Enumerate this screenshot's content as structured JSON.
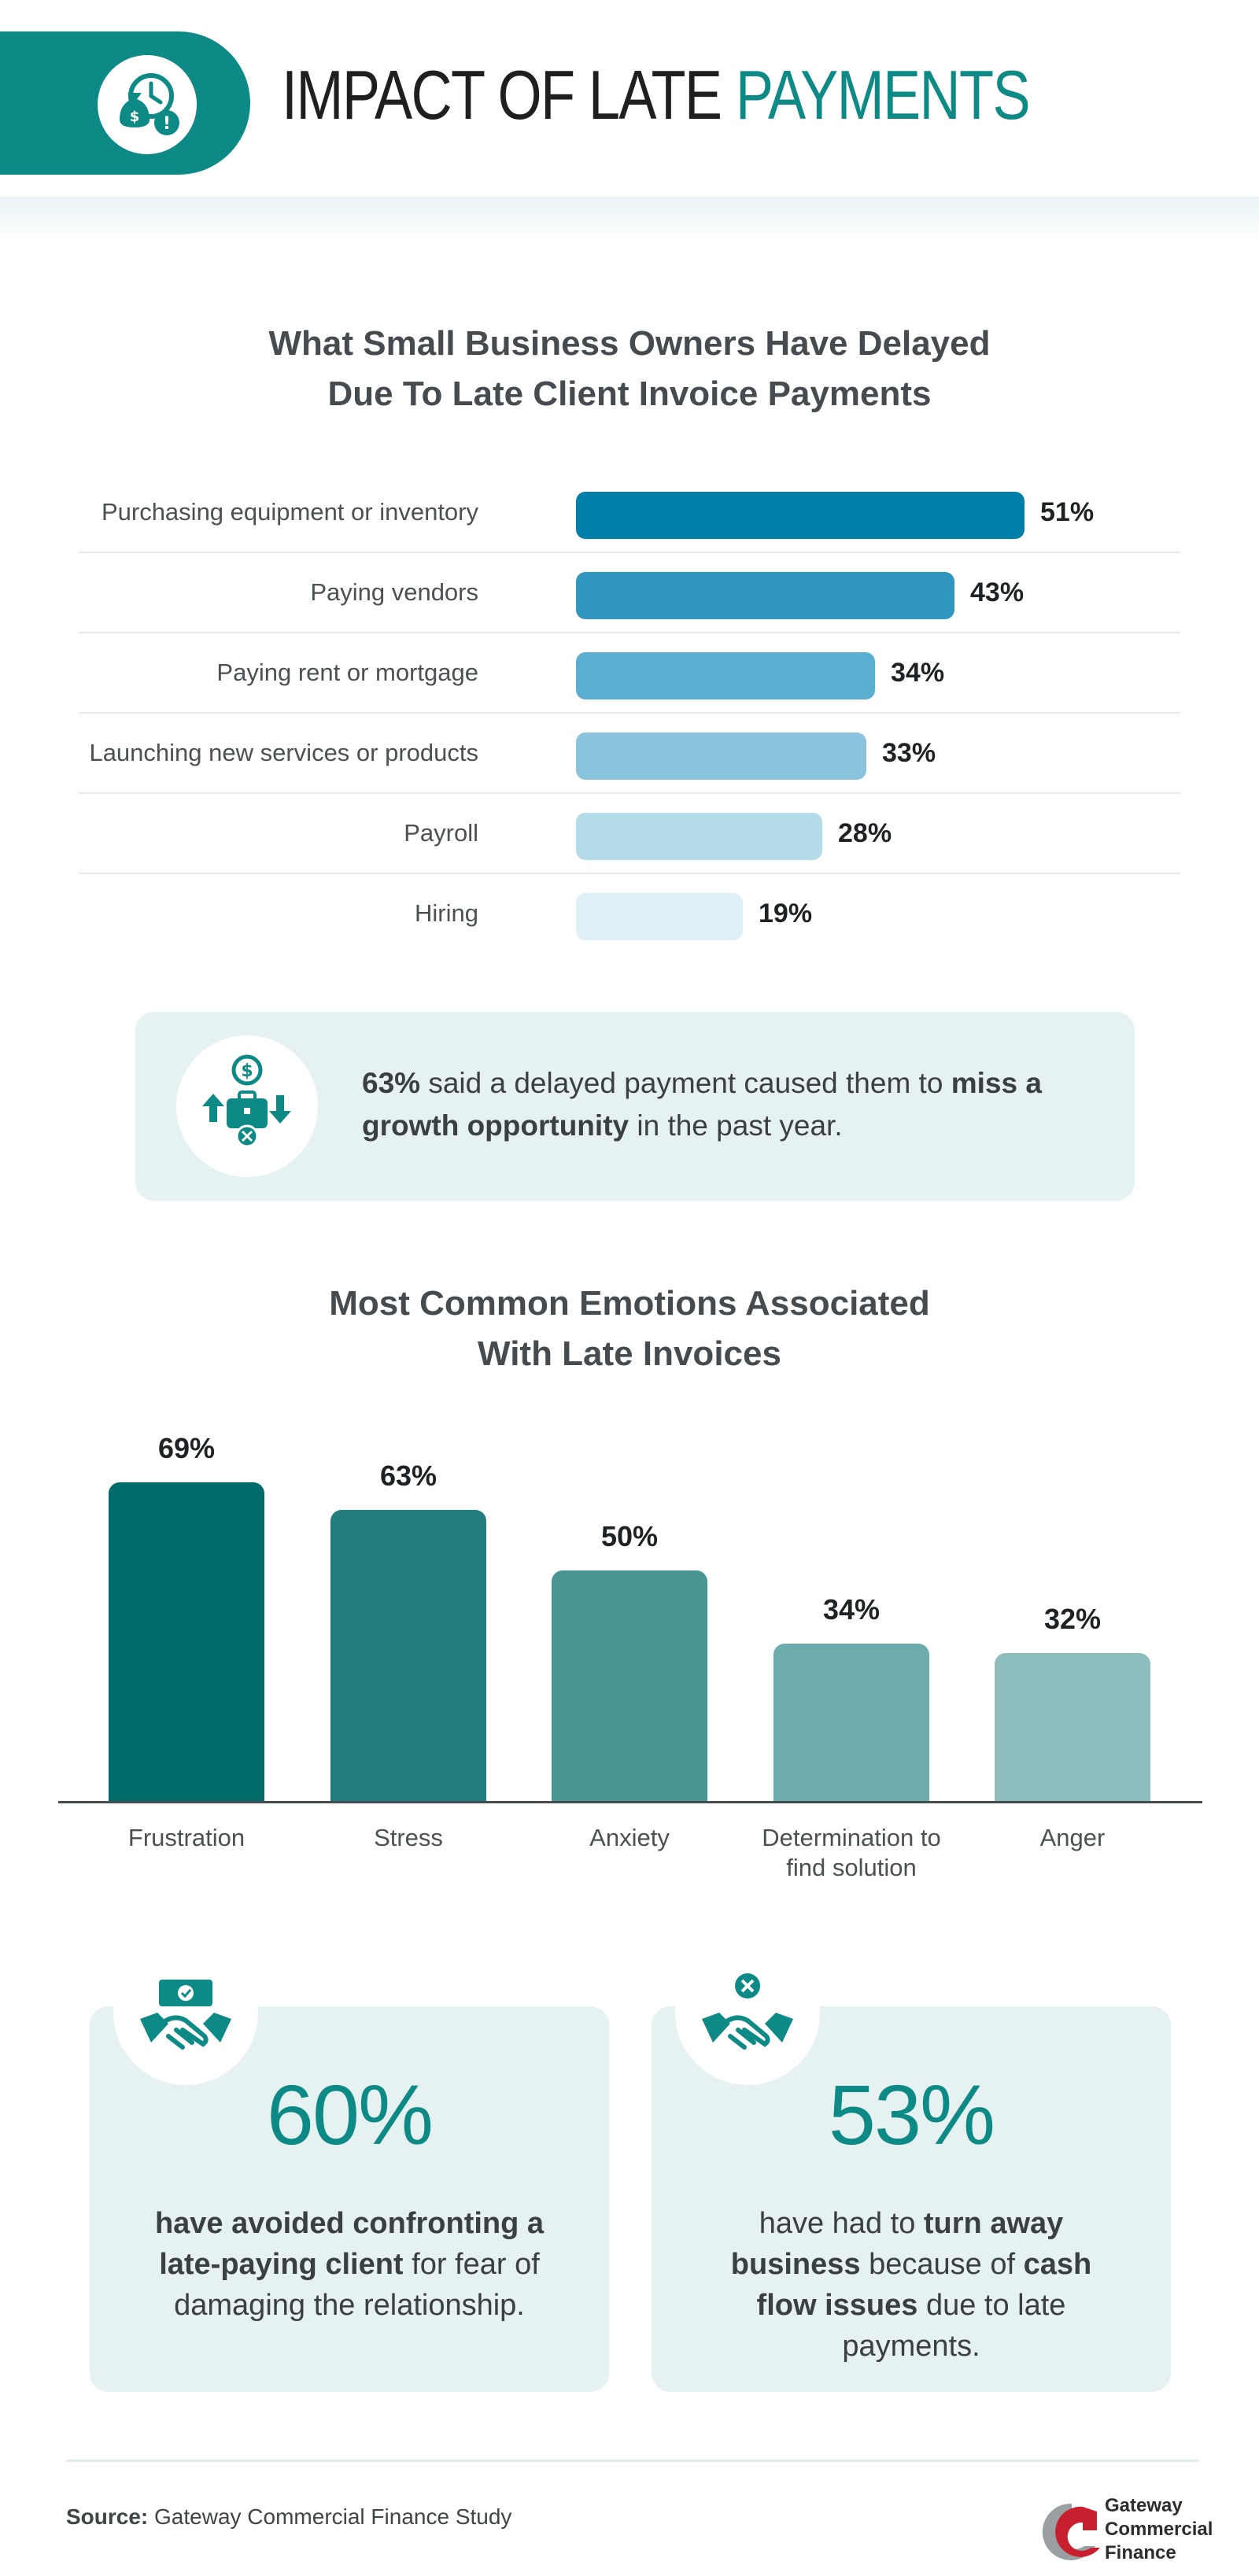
{
  "header": {
    "title_part1": "IMPACT OF LATE ",
    "title_part2": "PAYMENTS",
    "icon": "clock-money-alert-icon"
  },
  "chart1_title_line1": "What Small Business Owners Have Delayed",
  "chart1_title_line2": "Due To Late Client Invoice Payments",
  "callout": {
    "pct": "63%",
    "text1": " said a delayed payment caused them to ",
    "bold": "miss a growth opportunity",
    "text2": " in the past year.",
    "icon": "growth-opportunity-icon"
  },
  "chart2_title_line1": "Most Common Emotions Associated",
  "chart2_title_line2": "With Late Invoices",
  "stats": [
    {
      "number": "60%",
      "icon": "handshake-money-icon",
      "bold1": "have avoided confronting a late-paying client",
      "text1": " for fear of damaging the relationship.",
      "bold2": "",
      "text2": ""
    },
    {
      "number": "53%",
      "icon": "handshake-cancel-icon",
      "text0": "have had to ",
      "bold1": "turn away business",
      "text1": " because of ",
      "bold2": "cash flow issues",
      "text2": " due to late payments."
    }
  ],
  "footer": {
    "source_label": "Source:",
    "source_text": " Gateway Commercial Finance Study",
    "logo_line1": "Gateway",
    "logo_line2": "Commercial",
    "logo_line3": "Finance"
  },
  "colors": {
    "teal": "#0e8a86",
    "hbar": [
      "#007fab",
      "#2f96c0",
      "#5aaed0",
      "#89c4dc",
      "#b4dbea",
      "#dff0f6"
    ],
    "vbar": [
      "#006b68",
      "#237d7c",
      "#489594",
      "#6cacac",
      "#8ebdbd"
    ]
  },
  "chart_data": [
    {
      "type": "bar",
      "orientation": "horizontal",
      "title": "What Small Business Owners Have Delayed Due To Late Client Invoice Payments",
      "categories": [
        "Purchasing equipment or inventory",
        "Paying vendors",
        "Paying rent or mortgage",
        "Launching new services or products",
        "Payroll",
        "Hiring"
      ],
      "values": [
        51,
        43,
        34,
        33,
        28,
        19
      ],
      "labels": [
        "51%",
        "43%",
        "34%",
        "33%",
        "28%",
        "19%"
      ],
      "xlim": [
        0,
        51
      ]
    },
    {
      "type": "bar",
      "orientation": "vertical",
      "title": "Most Common Emotions Associated With Late Invoices",
      "categories": [
        "Frustration",
        "Stress",
        "Anxiety",
        "Determination to find solution",
        "Anger"
      ],
      "values": [
        69,
        63,
        50,
        34,
        32
      ],
      "labels": [
        "69%",
        "63%",
        "50%",
        "34%",
        "32%"
      ],
      "ylim": [
        0,
        69
      ]
    }
  ]
}
